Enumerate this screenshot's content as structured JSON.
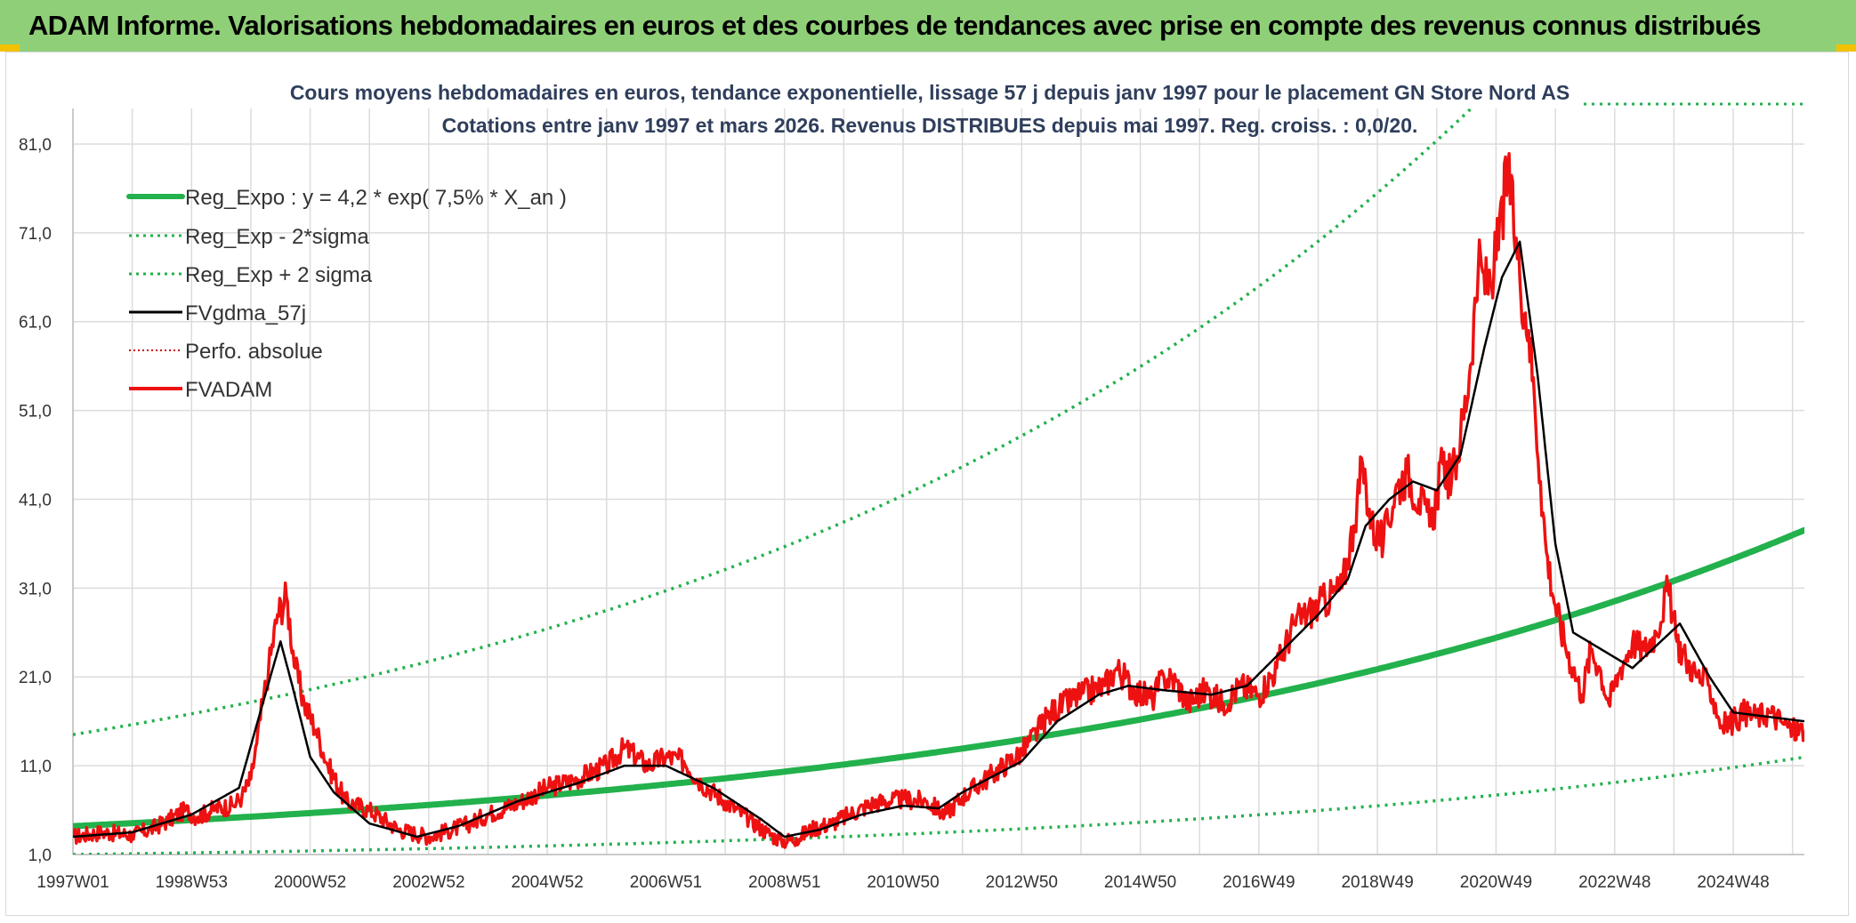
{
  "banner": {
    "title": "ADAM Informe. Valorisations hebdomadaires en euros et des courbes de tendances avec prise en compte des revenus connus distribués"
  },
  "colors": {
    "banner_bg": "#8fcf78",
    "regression": "#22b14c",
    "fvgdma": "#000000",
    "fvadam": "#ee1111",
    "perfo": "#cc0000",
    "grid": "#dcdcdc"
  },
  "chart_data": {
    "type": "line",
    "title": "Cours moyens hebdomadaires en euros, tendance exponentielle, lissage 57 j depuis janv 1997 pour le placement GN Store Nord AS",
    "subtitle": "Cotations entre janv 1997 et mars 2026. Revenus DISTRIBUES depuis mai 1997. Reg. croiss. : 0,0/20.",
    "xlabel": "",
    "ylabel": "",
    "x_range": [
      1997.0,
      2026.2
    ],
    "ylim": [
      1.0,
      85.0
    ],
    "y_ticks": [
      "1,0",
      "11,0",
      "21,0",
      "31,0",
      "41,0",
      "51,0",
      "61,0",
      "71,0",
      "81,0"
    ],
    "y_tick_values": [
      1,
      11,
      21,
      31,
      41,
      51,
      61,
      71,
      81
    ],
    "x_tick_labels": [
      "1997W01",
      "1998W53",
      "2000W52",
      "2002W52",
      "2004W52",
      "2006W51",
      "2008W51",
      "2010W50",
      "2012W50",
      "2014W50",
      "2016W49",
      "2018W49",
      "2020W49",
      "2022W48",
      "2024W48"
    ],
    "x_tick_values": [
      1997.0,
      1999.0,
      2001.0,
      2003.0,
      2005.0,
      2007.0,
      2009.0,
      2011.0,
      2013.0,
      2015.0,
      2017.0,
      2019.0,
      2021.0,
      2023.0,
      2025.0
    ],
    "legend": {
      "placement": "top-left",
      "entries": [
        {
          "label": "Reg_Expo : y = 4,2 * exp( 7,5% *  X_an )",
          "style": "thick-solid",
          "color": "#22b14c"
        },
        {
          "label": "Reg_Exp - 2*sigma",
          "style": "dotted",
          "color": "#22b14c"
        },
        {
          "label": "Reg_Exp + 2 sigma",
          "style": "dotted",
          "color": "#22b14c"
        },
        {
          "label": "FVgdma_57j",
          "style": "solid",
          "color": "#000000"
        },
        {
          "label": "Perfo. absolue",
          "style": "dotted",
          "color": "#cc0000"
        },
        {
          "label": "FVADAM",
          "style": "solid",
          "color": "#ee1111"
        }
      ]
    },
    "series": [
      {
        "name": "Reg_Expo",
        "model": "exponential",
        "a": 4.2,
        "rate": 0.075,
        "x0": 1997.0
      },
      {
        "name": "Reg_Exp - 2*sigma",
        "model": "exponential",
        "a": 1.0,
        "rate": 0.085,
        "x0": 1997.0
      },
      {
        "name": "Reg_Exp + 2 sigma",
        "model": "exponential",
        "a": 14.5,
        "rate": 0.075,
        "x0": 1997.0
      },
      {
        "name": "FVADAM",
        "x": [
          1997.0,
          1997.5,
          1998.0,
          1998.3,
          1998.6,
          1998.9,
          1999.1,
          1999.4,
          1999.7,
          1999.85,
          2000.0,
          2000.1,
          2000.2,
          2000.3,
          2000.45,
          2000.6,
          2000.75,
          2000.9,
          2001.1,
          2001.3,
          2001.6,
          2002.0,
          2002.5,
          2003.0,
          2003.3,
          2003.7,
          2004.0,
          2004.5,
          2005.0,
          2005.5,
          2006.0,
          2006.3,
          2006.7,
          2007.0,
          2007.3,
          2007.6,
          2008.0,
          2008.4,
          2008.7,
          2008.95,
          2009.2,
          2009.5,
          2009.8,
          2010.1,
          2010.5,
          2011.0,
          2011.4,
          2011.7,
          2012.0,
          2012.5,
          2013.0,
          2013.5,
          2014.0,
          2014.4,
          2014.6,
          2014.9,
          2015.2,
          2015.4,
          2015.6,
          2015.8,
          2016.1,
          2016.4,
          2016.7,
          2017.0,
          2017.3,
          2017.6,
          2018.0,
          2018.4,
          2018.6,
          2018.75,
          2018.9,
          2019.1,
          2019.3,
          2019.5,
          2019.7,
          2019.9,
          2020.1,
          2020.25,
          2020.4,
          2020.55,
          2020.7,
          2020.85,
          2021.0,
          2021.2,
          2021.4,
          2021.55,
          2021.65,
          2021.75,
          2021.85,
          2022.0,
          2022.15,
          2022.3,
          2022.45,
          2022.6,
          2022.75,
          2022.9,
          2023.1,
          2023.3,
          2023.5,
          2023.7,
          2023.9,
          2024.05,
          2024.2,
          2024.4,
          2024.6,
          2024.8,
          2025.0,
          2025.2,
          2025.4,
          2025.6,
          2025.8,
          2026.0,
          2026.2
        ],
        "values": [
          3.0,
          3.5,
          3.2,
          3.8,
          4.8,
          6.0,
          5.2,
          6.2,
          6.5,
          7.5,
          9.5,
          13.5,
          18.0,
          22.0,
          28.0,
          30.0,
          22.0,
          18.0,
          15.0,
          11.0,
          7.0,
          6.0,
          3.8,
          3.0,
          3.6,
          4.5,
          5.5,
          6.8,
          8.5,
          9.5,
          11.0,
          13.0,
          11.0,
          12.0,
          11.5,
          9.0,
          7.0,
          5.0,
          3.5,
          2.5,
          2.8,
          4.0,
          4.5,
          5.5,
          6.8,
          7.2,
          7.0,
          5.5,
          7.5,
          10.0,
          12.5,
          17.0,
          19.0,
          20.0,
          22.0,
          19.5,
          18.5,
          21.0,
          20.5,
          18.0,
          19.5,
          18.0,
          20.0,
          19.0,
          22.0,
          27.0,
          29.0,
          31.0,
          38.0,
          45.0,
          38.0,
          36.0,
          42.0,
          44.0,
          41.0,
          38.0,
          45.0,
          43.0,
          48.0,
          55.0,
          67.0,
          65.0,
          68.0,
          78.0,
          66.0,
          60.0,
          52.0,
          43.0,
          35.0,
          29.0,
          25.0,
          22.0,
          19.0,
          24.0,
          22.0,
          18.0,
          22.0,
          25.0,
          24.0,
          26.0,
          31.0,
          25.0,
          23.0,
          21.0,
          20.0,
          15.5,
          16.0,
          17.0,
          16.5,
          17.0,
          16.0,
          15.0,
          15.0
        ]
      },
      {
        "name": "FVgdma_57j",
        "x": [
          1997.0,
          1998.0,
          1999.0,
          1999.8,
          2000.2,
          2000.5,
          2000.7,
          2001.0,
          2001.4,
          2002.0,
          2002.8,
          2003.5,
          2004.5,
          2005.5,
          2006.3,
          2007.0,
          2007.8,
          2008.6,
          2009.0,
          2009.6,
          2010.3,
          2011.0,
          2011.6,
          2012.0,
          2013.0,
          2013.6,
          2014.3,
          2014.8,
          2015.4,
          2016.2,
          2016.8,
          2017.4,
          2018.0,
          2018.5,
          2018.8,
          2019.2,
          2019.6,
          2020.0,
          2020.4,
          2020.8,
          2021.1,
          2021.4,
          2021.7,
          2022.0,
          2022.3,
          2022.8,
          2023.3,
          2023.7,
          2024.1,
          2024.6,
          2025.0,
          2025.6,
          2026.2
        ],
        "values": [
          3.0,
          3.5,
          5.5,
          8.5,
          18.0,
          25.0,
          20.0,
          12.0,
          8.0,
          4.5,
          3.0,
          4.2,
          7.0,
          9.0,
          11.0,
          11.0,
          8.5,
          5.0,
          3.0,
          3.8,
          5.5,
          6.5,
          6.2,
          8.0,
          11.5,
          16.0,
          19.0,
          20.0,
          19.5,
          19.0,
          20.0,
          24.0,
          28.0,
          32.0,
          38.0,
          41.0,
          43.0,
          42.0,
          46.0,
          58.0,
          66.0,
          70.0,
          55.0,
          36.0,
          26.0,
          24.0,
          22.0,
          24.5,
          27.0,
          21.0,
          17.0,
          16.5,
          16.0
        ]
      }
    ]
  }
}
